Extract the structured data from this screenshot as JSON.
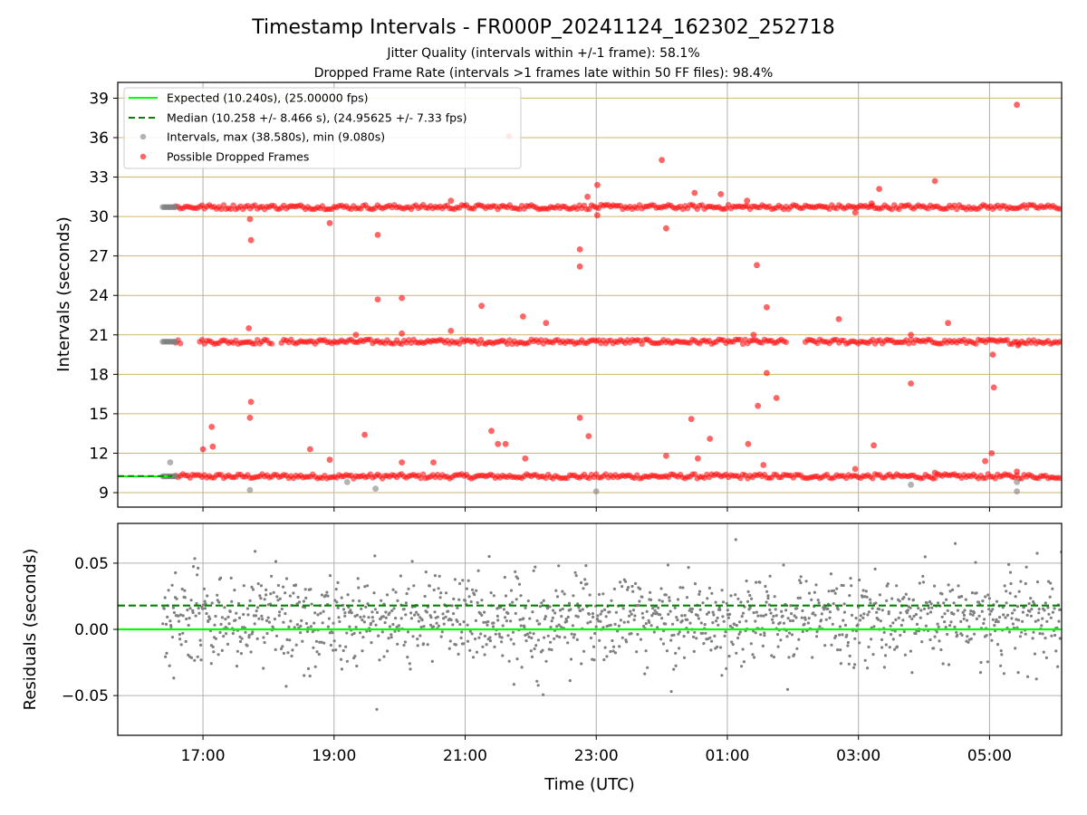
{
  "chart_data": [
    {
      "type": "scatter",
      "title": "Timestamp Intervals - FR000P_20241124_162302_252718",
      "subtitle_1": "Jitter Quality (intervals within +/-1 frame): 58.1%",
      "subtitle_2": "Dropped Frame Rate (intervals >1 frames late within 50 FF files): 98.4%",
      "xlabel": "",
      "ylabel": "Intervals (seconds)",
      "xlim": [
        "2024-11-24 15:42",
        "2024-11-25 06:06"
      ],
      "ylim": [
        7.9,
        40.2
      ],
      "y_ticks": [
        "9",
        "12",
        "15",
        "18",
        "21",
        "24",
        "27",
        "30",
        "33",
        "36",
        "39"
      ],
      "grid": "x major gray, y minor-tan",
      "legend_position": "top-left",
      "legend": [
        "Expected (10.240s), (25.00000 fps)",
        "Median (10.258 +/- 8.466 s), (24.95625 +/- 7.33 fps)",
        "Intervals, max (38.580s), min (9.080s)",
        "Possible Dropped Frames"
      ],
      "series": [
        {
          "name": "Expected (10.240s), (25.00000 fps)",
          "kind": "hline",
          "y": 10.24,
          "color": "#00ff00"
        },
        {
          "name": "Median (10.258 +/- 8.466 s), (24.95625 +/- 7.33 fps)",
          "kind": "hline",
          "y": 10.258,
          "color": "#008000",
          "style": "dashed"
        },
        {
          "name": "Intervals, max (38.580s), min (9.080s)",
          "kind": "scatter",
          "color": "#808080",
          "bands": [
            {
              "y": 10.24,
              "x_start": "2024-11-24 16:23",
              "x_end": "2024-11-24 16:35"
            },
            {
              "y": 20.48,
              "x_start": "2024-11-24 16:23",
              "x_end": "2024-11-24 16:35"
            },
            {
              "y": 30.72,
              "x_start": "2024-11-24 16:23",
              "x_end": "2024-11-24 16:35"
            }
          ],
          "points": [
            [
              "2024-11-24 16:30",
              11.3
            ],
            [
              "2024-11-24 17:43",
              9.2
            ],
            [
              "2024-11-24 19:12",
              9.8
            ],
            [
              "2024-11-24 19:38",
              9.3
            ],
            [
              "2024-11-24 23:00",
              9.1
            ],
            [
              "2024-11-25 03:48",
              9.6
            ],
            [
              "2024-11-25 05:25",
              9.1
            ],
            [
              "2024-11-25 05:25",
              9.8
            ]
          ]
        },
        {
          "name": "Possible Dropped Frames",
          "kind": "scatter",
          "color": "#ff0000",
          "bands": [
            {
              "y": 10.24,
              "x_start": "2024-11-24 16:35",
              "x_end": "2024-11-25 06:06"
            },
            {
              "y": 20.48,
              "x_start": "2024-11-24 16:35",
              "x_end": "2024-11-25 06:06"
            },
            {
              "y": 30.72,
              "x_start": "2024-11-24 16:35",
              "x_end": "2024-11-25 06:06"
            }
          ],
          "points": [
            [
              "2024-11-24 17:00",
              12.3
            ],
            [
              "2024-11-24 17:08",
              14.0
            ],
            [
              "2024-11-24 17:09",
              12.5
            ],
            [
              "2024-11-24 17:43",
              29.8
            ],
            [
              "2024-11-24 17:44",
              28.2
            ],
            [
              "2024-11-24 17:42",
              21.5
            ],
            [
              "2024-11-24 17:44",
              15.9
            ],
            [
              "2024-11-24 17:43",
              14.7
            ],
            [
              "2024-11-24 18:38",
              12.3
            ],
            [
              "2024-11-24 18:56",
              29.5
            ],
            [
              "2024-11-24 18:56",
              11.5
            ],
            [
              "2024-11-24 19:20",
              21.0
            ],
            [
              "2024-11-24 19:28",
              13.4
            ],
            [
              "2024-11-24 19:40",
              28.6
            ],
            [
              "2024-11-24 19:40",
              23.7
            ],
            [
              "2024-11-24 20:02",
              23.8
            ],
            [
              "2024-11-24 20:02",
              21.1
            ],
            [
              "2024-11-24 20:02",
              11.3
            ],
            [
              "2024-11-24 20:31",
              11.3
            ],
            [
              "2024-11-24 20:47",
              21.3
            ],
            [
              "2024-11-24 20:47",
              31.2
            ],
            [
              "2024-11-24 21:15",
              23.2
            ],
            [
              "2024-11-24 21:24",
              13.7
            ],
            [
              "2024-11-24 21:30",
              12.7
            ],
            [
              "2024-11-24 21:37",
              12.7
            ],
            [
              "2024-11-24 21:40",
              36.1
            ],
            [
              "2024-11-24 21:53",
              22.4
            ],
            [
              "2024-11-24 21:55",
              11.6
            ],
            [
              "2024-11-24 22:14",
              21.9
            ],
            [
              "2024-11-24 22:45",
              27.5
            ],
            [
              "2024-11-24 22:45",
              26.2
            ],
            [
              "2024-11-24 22:45",
              14.7
            ],
            [
              "2024-11-24 22:52",
              31.5
            ],
            [
              "2024-11-24 22:53",
              13.3
            ],
            [
              "2024-11-24 23:01",
              32.4
            ],
            [
              "2024-11-24 23:01",
              30.1
            ],
            [
              "2024-11-25 00:00",
              34.3
            ],
            [
              "2024-11-25 00:04",
              29.1
            ],
            [
              "2024-11-25 00:04",
              11.8
            ],
            [
              "2024-11-25 00:27",
              14.6
            ],
            [
              "2024-11-25 00:30",
              31.8
            ],
            [
              "2024-11-25 00:33",
              11.6
            ],
            [
              "2024-11-25 00:44",
              13.1
            ],
            [
              "2024-11-25 00:54",
              31.7
            ],
            [
              "2024-11-25 01:18",
              31.2
            ],
            [
              "2024-11-25 01:19",
              12.7
            ],
            [
              "2024-11-25 01:24",
              21.0
            ],
            [
              "2024-11-25 01:27",
              26.3
            ],
            [
              "2024-11-25 01:28",
              15.6
            ],
            [
              "2024-11-25 01:33",
              11.1
            ],
            [
              "2024-11-25 01:36",
              23.1
            ],
            [
              "2024-11-25 01:36",
              18.1
            ],
            [
              "2024-11-25 01:45",
              16.2
            ],
            [
              "2024-11-25 02:42",
              22.2
            ],
            [
              "2024-11-25 02:57",
              30.3
            ],
            [
              "2024-11-25 02:57",
              10.8
            ],
            [
              "2024-11-25 03:12",
              31.0
            ],
            [
              "2024-11-25 03:14",
              12.6
            ],
            [
              "2024-11-25 03:19",
              32.1
            ],
            [
              "2024-11-25 03:48",
              21.0
            ],
            [
              "2024-11-25 03:48",
              17.3
            ],
            [
              "2024-11-25 04:10",
              32.7
            ],
            [
              "2024-11-25 04:10",
              10.5
            ],
            [
              "2024-11-25 04:22",
              21.9
            ],
            [
              "2024-11-25 04:56",
              11.4
            ],
            [
              "2024-11-25 05:02",
              12.0
            ],
            [
              "2024-11-25 05:03",
              19.5
            ],
            [
              "2024-11-25 05:04",
              17.0
            ],
            [
              "2024-11-25 05:26",
              20.2
            ],
            [
              "2024-11-25 05:25",
              38.5
            ],
            [
              "2024-11-25 05:25",
              10.6
            ]
          ]
        }
      ]
    },
    {
      "type": "scatter",
      "title": "",
      "xlabel": "Time (UTC)",
      "ylabel": "Residuals (seconds)",
      "xlim": [
        "2024-11-24 15:42",
        "2024-11-25 06:06"
      ],
      "ylim": [
        -0.08,
        0.08
      ],
      "y_ticks": [
        "−0.05",
        "0.00",
        "0.05"
      ],
      "x_ticks": [
        "17:00",
        "19:00",
        "21:00",
        "23:00",
        "01:00",
        "03:00",
        "05:00"
      ],
      "grid": true,
      "series": [
        {
          "kind": "hline",
          "y": 0.0,
          "color": "#00ff00"
        },
        {
          "kind": "hline",
          "y": 0.018,
          "color": "#008000",
          "style": "dashed"
        },
        {
          "kind": "scatter",
          "color": "#808080",
          "distribution": {
            "x_start": "2024-11-24 16:23",
            "x_end": "2024-11-25 06:06",
            "count": 1400,
            "mean": 0.008,
            "std": 0.017
          }
        }
      ]
    }
  ]
}
